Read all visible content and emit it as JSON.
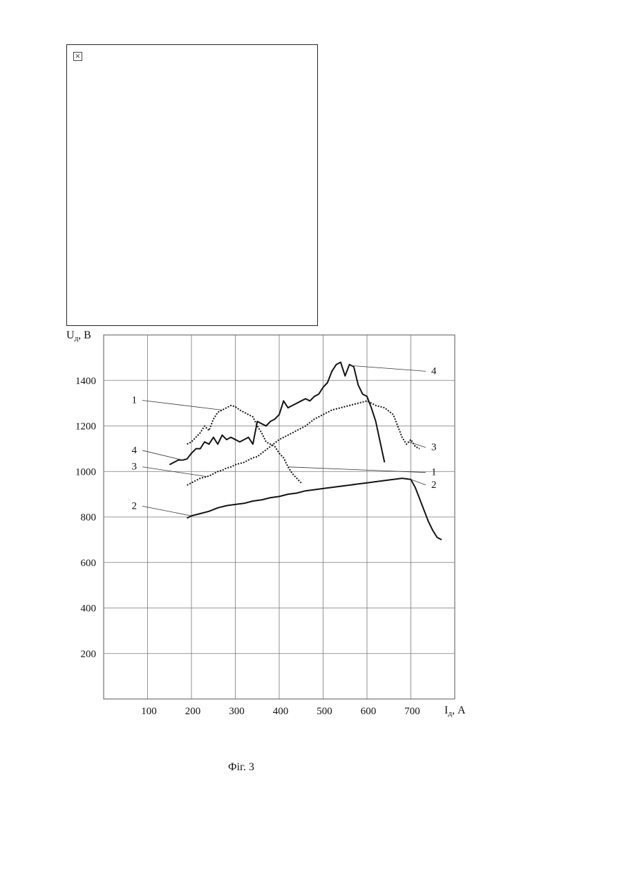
{
  "placeholder_image": {
    "icon": "broken-image-icon",
    "glyph": "×"
  },
  "figure_caption": "Фіг. 3",
  "chart_data": {
    "type": "line",
    "ylabel": "U",
    "ylabel_sub": "д",
    "ylabel_unit": ", В",
    "xlabel": "I",
    "xlabel_sub": "д",
    "xlabel_unit": ", А",
    "xlim": [
      0,
      800
    ],
    "ylim": [
      0,
      1600
    ],
    "grid": true,
    "x_ticks": [
      100,
      200,
      300,
      400,
      500,
      600,
      700
    ],
    "y_ticks": [
      200,
      400,
      600,
      800,
      1000,
      1200,
      1400
    ],
    "series": [
      {
        "label": "1",
        "style": "dotted",
        "x": [
          190,
          200,
          210,
          220,
          230,
          240,
          250,
          260,
          270,
          280,
          290,
          300,
          310,
          320,
          330,
          340,
          350,
          360,
          370,
          380,
          390,
          400,
          410,
          420,
          430,
          440,
          450
        ],
        "y": [
          1120,
          1130,
          1150,
          1170,
          1200,
          1180,
          1230,
          1260,
          1270,
          1280,
          1290,
          1285,
          1270,
          1260,
          1250,
          1240,
          1200,
          1170,
          1130,
          1120,
          1110,
          1080,
          1060,
          1020,
          990,
          970,
          950
        ]
      },
      {
        "label": "2",
        "style": "solid",
        "x": [
          190,
          200,
          220,
          240,
          260,
          280,
          300,
          320,
          340,
          360,
          380,
          400,
          420,
          440,
          460,
          480,
          500,
          520,
          540,
          560,
          580,
          600,
          620,
          640,
          660,
          680,
          700,
          710,
          720,
          730,
          740,
          750,
          760,
          770
        ],
        "y": [
          795,
          805,
          815,
          825,
          840,
          850,
          855,
          860,
          870,
          875,
          885,
          890,
          900,
          905,
          915,
          920,
          925,
          930,
          935,
          940,
          945,
          950,
          955,
          960,
          965,
          970,
          965,
          930,
          880,
          830,
          780,
          740,
          710,
          700
        ]
      },
      {
        "label": "3",
        "style": "dotted",
        "x": [
          190,
          200,
          210,
          220,
          230,
          240,
          250,
          260,
          270,
          280,
          290,
          300,
          310,
          320,
          330,
          340,
          350,
          360,
          380,
          400,
          420,
          440,
          460,
          480,
          500,
          520,
          540,
          560,
          580,
          600,
          620,
          640,
          660,
          680,
          690,
          700,
          710,
          720
        ],
        "y": [
          940,
          950,
          960,
          970,
          975,
          980,
          990,
          1000,
          1005,
          1015,
          1020,
          1030,
          1035,
          1040,
          1050,
          1060,
          1065,
          1080,
          1110,
          1140,
          1160,
          1180,
          1200,
          1230,
          1250,
          1270,
          1280,
          1290,
          1300,
          1310,
          1290,
          1280,
          1250,
          1150,
          1120,
          1140,
          1110,
          1100
        ]
      },
      {
        "label": "4",
        "style": "solid",
        "x": [
          150,
          160,
          170,
          180,
          190,
          200,
          210,
          220,
          230,
          240,
          250,
          260,
          270,
          280,
          290,
          300,
          310,
          320,
          330,
          340,
          350,
          360,
          370,
          380,
          390,
          400,
          410,
          420,
          430,
          440,
          450,
          460,
          470,
          480,
          490,
          500,
          510,
          520,
          530,
          540,
          550,
          560,
          570,
          580,
          590,
          600,
          610,
          620,
          630,
          640
        ],
        "y": [
          1030,
          1040,
          1050,
          1050,
          1055,
          1080,
          1100,
          1100,
          1130,
          1120,
          1150,
          1120,
          1160,
          1140,
          1150,
          1140,
          1130,
          1140,
          1150,
          1120,
          1220,
          1210,
          1200,
          1220,
          1230,
          1250,
          1310,
          1280,
          1290,
          1300,
          1310,
          1320,
          1310,
          1330,
          1340,
          1370,
          1390,
          1440,
          1470,
          1480,
          1420,
          1470,
          1460,
          1380,
          1340,
          1330,
          1280,
          1220,
          1130,
          1040
        ]
      }
    ],
    "annotations": [
      {
        "text": "1",
        "side": "left",
        "series": 0,
        "at_x": 270
      },
      {
        "text": "4",
        "side": "left",
        "series": 3,
        "at_x": 180
      },
      {
        "text": "3",
        "side": "left",
        "series": 2,
        "at_x": 235
      },
      {
        "text": "2",
        "side": "left",
        "series": 1,
        "at_x": 200
      },
      {
        "text": "4",
        "side": "right",
        "series": 3,
        "at_x": 565
      },
      {
        "text": "3",
        "side": "right",
        "series": 2,
        "at_x": 695
      },
      {
        "text": "1",
        "side": "right",
        "series": 0,
        "at_x": 420
      },
      {
        "text": "2",
        "side": "right",
        "series": 1,
        "at_x": 700
      }
    ]
  }
}
